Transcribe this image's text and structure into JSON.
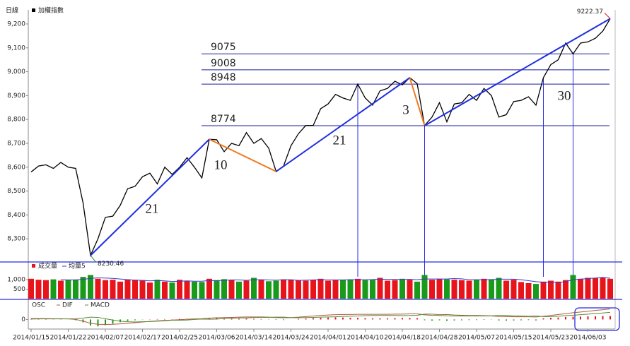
{
  "chart_data": {
    "type": "stock",
    "period_label": "日線",
    "categories": [
      "2014/01/15",
      null,
      null,
      null,
      null,
      "2014/01/22",
      null,
      null,
      null,
      null,
      "2014/02/07",
      null,
      null,
      null,
      null,
      "2014/02/17",
      null,
      null,
      null,
      null,
      "2014/02/25",
      null,
      null,
      null,
      null,
      "2014/03/06",
      null,
      null,
      null,
      null,
      "2014/03/14",
      null,
      null,
      null,
      null,
      "2014/03/24",
      null,
      null,
      null,
      null,
      "2014/04/01",
      null,
      null,
      null,
      null,
      "2014/04/10",
      null,
      null,
      null,
      null,
      "2014/04/18",
      null,
      null,
      null,
      null,
      "2014/04/28",
      null,
      null,
      null,
      null,
      "2014/05/07",
      null,
      null,
      null,
      null,
      "2014/05/15",
      null,
      null,
      null,
      null,
      "2014/05/23",
      null,
      null,
      null,
      null,
      "2014/06/03",
      null,
      null,
      null
    ],
    "price": {
      "series": [
        {
          "name": "加權指數",
          "color": "#000000",
          "values": [
            8580,
            8605,
            8610,
            8595,
            8620,
            8600,
            8595,
            8450,
            8230.46,
            8300,
            8390,
            8395,
            8440,
            8510,
            8520,
            8560,
            8575,
            8530,
            8600,
            8570,
            8600,
            8640,
            8600,
            8555,
            8717,
            8715,
            8665,
            8700,
            8690,
            8745,
            8700,
            8720,
            8680,
            8582,
            8605,
            8690,
            8740,
            8775,
            8775,
            8845,
            8865,
            8905,
            8890,
            8880,
            8948,
            8890,
            8860,
            8920,
            8930,
            8960,
            8945,
            8975,
            8950,
            8774,
            8810,
            8870,
            8790,
            8865,
            8870,
            8905,
            8880,
            8930,
            8900,
            8810,
            8820,
            8875,
            8880,
            8895,
            8860,
            8975,
            9030,
            9050,
            9120,
            9075,
            9120,
            9125,
            9140,
            9170,
            9222.37
          ]
        }
      ],
      "ylim": [
        8206,
        9259
      ],
      "yticks": [
        {
          "value": 8300,
          "label": "8,300"
        },
        {
          "value": 8400,
          "label": "8,400"
        },
        {
          "value": 8500,
          "label": "8,500"
        },
        {
          "value": 8600,
          "label": "8,600"
        },
        {
          "value": 8700,
          "label": "8,700"
        },
        {
          "value": 8800,
          "label": "8,800"
        },
        {
          "value": 8900,
          "label": "8,900"
        },
        {
          "value": 9000,
          "label": "9,000"
        },
        {
          "value": 9100,
          "label": "9,100"
        },
        {
          "value": 9200,
          "label": "9,200"
        }
      ],
      "min_max_labels": true,
      "levels": [
        9075,
        9008,
        8948,
        8774
      ],
      "level_color": "#1c1c9c",
      "trend_lines": [
        {
          "from": 8,
          "to": 24,
          "label": "21",
          "color": "#1f2fe0"
        },
        {
          "from": 24,
          "to": 33,
          "label": "10",
          "color": "#f07a20"
        },
        {
          "from": 33,
          "to": 51,
          "label": "21",
          "color": "#1f2fe0"
        },
        {
          "from": 51,
          "to": 53,
          "label": "3",
          "color": "#f07a20"
        },
        {
          "from": 53,
          "to": 78,
          "label": "30",
          "color": "#1f2fe0"
        }
      ],
      "vlines": [
        44,
        53,
        69,
        73
      ]
    },
    "volume": {
      "series": [
        {
          "name": "成交量",
          "color": "#e8141b",
          "down_color": "#1a9a1a",
          "values": [
            1050,
            1000,
            980,
            1020,
            950,
            1000,
            1010,
            1150,
            1250,
            1050,
            980,
            1000,
            900,
            1020,
            1000,
            950,
            850,
            1000,
            900,
            850,
            1000,
            950,
            900,
            880,
            1050,
            980,
            1030,
            1000,
            900,
            950,
            1100,
            1000,
            920,
            950,
            1020,
            1000,
            980,
            950,
            1000,
            1050,
            950,
            980,
            1000,
            1020,
            1050,
            980,
            1000,
            1100,
            950,
            980,
            1050,
            1000,
            900,
            1250,
            1000,
            1050,
            1020,
            1000,
            980,
            950,
            1000,
            1050,
            1030,
            1100,
            950,
            1000,
            880,
            820,
            780,
            900,
            950,
            900,
            980,
            1250,
            1050,
            1100,
            1080,
            1120,
            1050
          ]
        },
        {
          "name": "均量5",
          "color": "#3a3ad0",
          "values": [
            null,
            null,
            null,
            null,
            1000,
            990,
            990,
            1020,
            1070,
            1100,
            1090,
            1070,
            1040,
            1000,
            980,
            970,
            940,
            960,
            940,
            910,
            920,
            940,
            920,
            920,
            960,
            950,
            970,
            990,
            990,
            970,
            1000,
            1000,
            990,
            980,
            1000,
            1000,
            970,
            980,
            990,
            1000,
            990,
            990,
            990,
            1000,
            1000,
            1000,
            1010,
            1030,
            1020,
            1020,
            1010,
            1020,
            1000,
            1040,
            1040,
            1040,
            1040,
            1060,
            1050,
            1000,
            1000,
            1000,
            1000,
            1030,
            1030,
            1030,
            1000,
            950,
            900,
            870,
            870,
            850,
            900,
            1000,
            1030,
            1060,
            1090,
            1120,
            1080
          ]
        }
      ],
      "ylim": [
        0,
        1900
      ],
      "yticks": [
        {
          "value": 1000,
          "label": "1,000"
        },
        500
      ]
    },
    "macd": {
      "series": [
        {
          "name": "OSC",
          "color": "#e8141b",
          "down_color": "#1a9a1a",
          "values": [
            3,
            2,
            2,
            1,
            1,
            0,
            -4,
            -15,
            -32,
            -36,
            -30,
            -22,
            -14,
            -8,
            -4,
            -1,
            1,
            2,
            2,
            1,
            3,
            4,
            3,
            2,
            6,
            7,
            5,
            5,
            4,
            5,
            3,
            2,
            1,
            -2,
            -3,
            0,
            3,
            5,
            7,
            9,
            10,
            11,
            10,
            9,
            9,
            7,
            6,
            6,
            6,
            7,
            8,
            8,
            7,
            -4,
            -6,
            -4,
            -7,
            -5,
            -4,
            -3,
            -3,
            -2,
            -1,
            -5,
            -6,
            -5,
            -4,
            -3,
            -5,
            6,
            9,
            10,
            13,
            14,
            15,
            16,
            17,
            18,
            18
          ]
        },
        {
          "name": "DIF",
          "color": "#b05a3a",
          "values": [
            5,
            5,
            5,
            4,
            4,
            3,
            0,
            -8,
            -20,
            -25,
            -26,
            -25,
            -23,
            -20,
            -17,
            -13,
            -10,
            -7,
            -5,
            -3,
            -1,
            1,
            3,
            4,
            7,
            9,
            10,
            11,
            12,
            13,
            13,
            13,
            12,
            10,
            9,
            10,
            12,
            15,
            18,
            21,
            23,
            25,
            26,
            26,
            27,
            27,
            27,
            27,
            27,
            28,
            28,
            29,
            29,
            24,
            22,
            21,
            19,
            18,
            18,
            18,
            18,
            18,
            18,
            16,
            15,
            14,
            14,
            14,
            13,
            17,
            21,
            26,
            30,
            35,
            39,
            43,
            47,
            51,
            55
          ]
        },
        {
          "name": "MACD",
          "color": "#5a8a3a",
          "values": [
            2,
            3,
            3,
            3,
            3,
            3,
            4,
            7,
            12,
            11,
            4,
            -3,
            -9,
            -12,
            -13,
            -12,
            -11,
            -9,
            -7,
            -4,
            -4,
            -3,
            0,
            2,
            1,
            2,
            5,
            6,
            8,
            8,
            10,
            11,
            11,
            12,
            12,
            10,
            9,
            10,
            11,
            12,
            13,
            14,
            16,
            17,
            18,
            20,
            21,
            21,
            21,
            21,
            20,
            21,
            22,
            28,
            28,
            25,
            26,
            23,
            22,
            21,
            21,
            20,
            19,
            21,
            21,
            19,
            18,
            17,
            18,
            15,
            15,
            17,
            20,
            22,
            25,
            28,
            31,
            34,
            37
          ]
        }
      ],
      "ylim": [
        -50,
        90
      ],
      "yticks": [
        0
      ]
    }
  }
}
